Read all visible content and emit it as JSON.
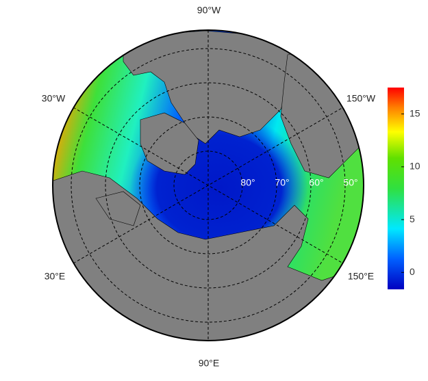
{
  "map": {
    "longitude_labels": [
      "90°W",
      "30°W",
      "150°W",
      "30°E",
      "150°E",
      "90°E"
    ],
    "latitude_labels": [
      "80°",
      "70°",
      "60°",
      "50°"
    ]
  },
  "colorbar": {
    "lim": [
      -1.6,
      17.5
    ],
    "ticks": [
      0,
      5,
      10,
      15
    ]
  }
}
